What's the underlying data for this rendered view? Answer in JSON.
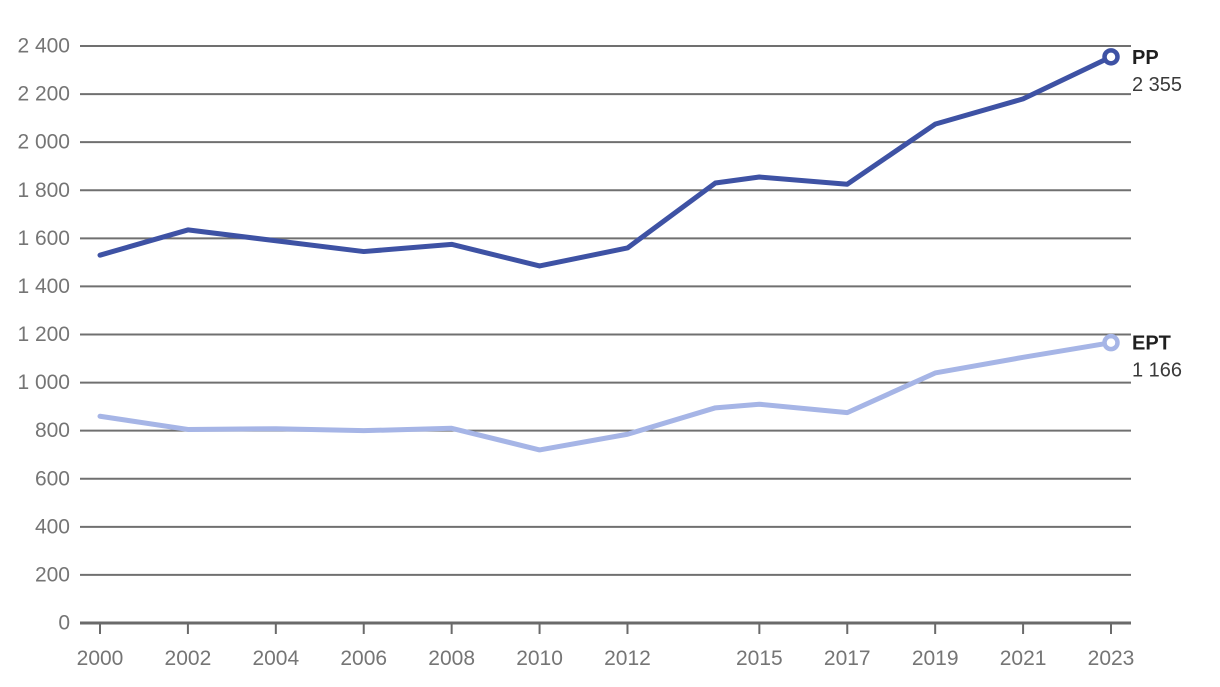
{
  "chart_data": {
    "type": "line",
    "x": [
      2000,
      2002,
      2004,
      2006,
      2008,
      2010,
      2012,
      2014,
      2015,
      2017,
      2019,
      2021,
      2023
    ],
    "series": [
      {
        "name": "PP",
        "color": "#3e52a4",
        "values": [
          1530,
          1635,
          1590,
          1545,
          1575,
          1485,
          1560,
          1830,
          1855,
          1825,
          2075,
          2180,
          2355
        ],
        "end_label_name": "PP",
        "end_label_value": "2 355"
      },
      {
        "name": "EPT",
        "color": "#a6b5e6",
        "values": [
          860,
          805,
          808,
          800,
          810,
          720,
          785,
          895,
          910,
          875,
          1040,
          1105,
          1166
        ],
        "end_label_name": "EPT",
        "end_label_value": "1 166"
      }
    ],
    "x_tick_years": [
      2000,
      2002,
      2004,
      2006,
      2008,
      2010,
      2012,
      2015,
      2017,
      2019,
      2021,
      2023
    ],
    "x_tick_labels": [
      "2000",
      "2002",
      "2004",
      "2006",
      "2008",
      "2010",
      "2012",
      "2015",
      "2017",
      "2019",
      "2021",
      "2023"
    ],
    "y_ticks": [
      0,
      200,
      400,
      600,
      800,
      1000,
      1200,
      1400,
      1600,
      1800,
      2000,
      2200,
      2400
    ],
    "y_tick_labels": [
      "0",
      "200",
      "400",
      "600",
      "800",
      "1 000",
      "1 200",
      "1 400",
      "1 600",
      "1 800",
      "2 000",
      "2 200",
      "2 400"
    ],
    "xlim": [
      2000,
      2023
    ],
    "ylim": [
      0,
      2400
    ],
    "grid": true,
    "legend_position": "end-of-line-labels",
    "title": "",
    "xlabel": "",
    "ylabel": ""
  },
  "colors": {
    "background": "#ffffff",
    "gridline": "#707070",
    "axis_line": "#6a6a6a",
    "tick": "#6a6a6a",
    "axis_text": "#757575",
    "series_name_text": "#1f1f1f",
    "series_value_text": "#3a3a3a",
    "marker_fill": "#ffffff"
  }
}
